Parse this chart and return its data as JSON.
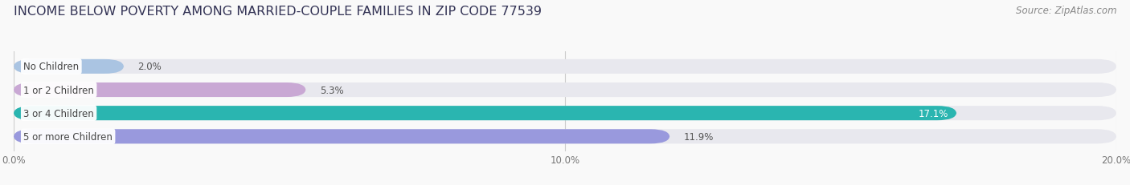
{
  "title": "INCOME BELOW POVERTY AMONG MARRIED-COUPLE FAMILIES IN ZIP CODE 77539",
  "source": "Source: ZipAtlas.com",
  "categories": [
    "No Children",
    "1 or 2 Children",
    "3 or 4 Children",
    "5 or more Children"
  ],
  "values": [
    2.0,
    5.3,
    17.1,
    11.9
  ],
  "bar_colors": [
    "#aac4e2",
    "#c9a8d4",
    "#2ab5b0",
    "#9999dd"
  ],
  "bar_bg_color": "#e8e8ee",
  "xlim": [
    0,
    20.0
  ],
  "xticks": [
    0.0,
    10.0,
    20.0
  ],
  "xticklabels": [
    "0.0%",
    "10.0%",
    "20.0%"
  ],
  "title_fontsize": 11.5,
  "source_fontsize": 8.5,
  "label_fontsize": 8.5,
  "value_fontsize": 8.5,
  "background_color": "#f9f9f9",
  "bar_height": 0.62,
  "rounding_size": 0.35,
  "title_color": "#333355",
  "source_color": "#888888",
  "label_text_color": "#444444",
  "value_text_color_dark": "#555555",
  "value_text_color_light": "#ffffff"
}
